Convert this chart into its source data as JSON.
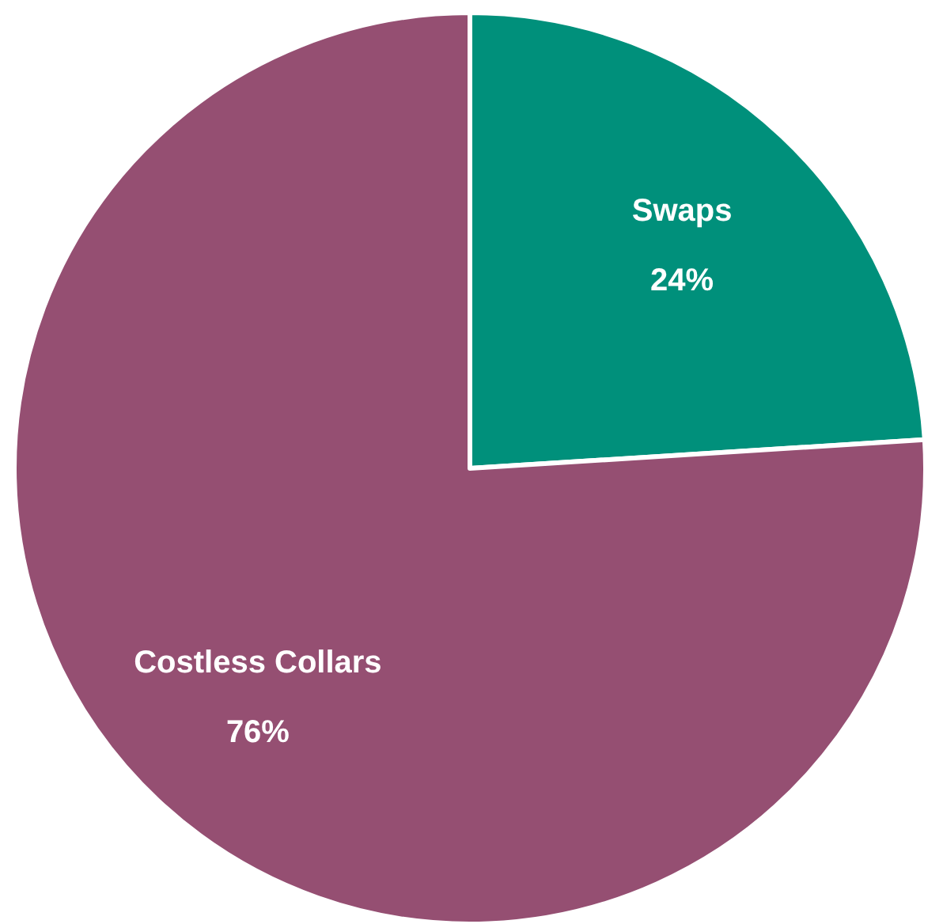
{
  "chart_data": {
    "type": "pie",
    "categories": [
      "Swaps",
      "Costless Collars"
    ],
    "values": [
      24,
      76
    ],
    "colors": [
      "#00907b",
      "#954f72"
    ],
    "value_labels": [
      "24%",
      "76%"
    ]
  }
}
